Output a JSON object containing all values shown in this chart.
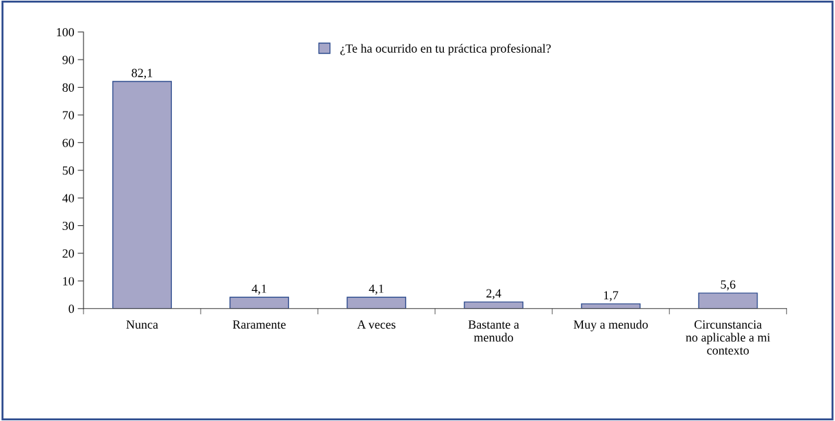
{
  "chart_data": {
    "type": "bar",
    "categories": [
      "Nunca",
      "Raramente",
      "A veces",
      "Bastante a\nmenudo",
      "Muy a menudo",
      "Circunstancia\nno aplicable a mi\ncontexto"
    ],
    "series": [
      {
        "name": "¿Te ha ocurrido en tu práctica profesional?",
        "color": "#a6a6c8",
        "values": [
          82.1,
          4.1,
          4.1,
          2.4,
          1.7,
          5.6
        ],
        "value_labels": [
          "82,1",
          "4,1",
          "4,1",
          "2,4",
          "1,7",
          "5,6"
        ]
      }
    ],
    "ylim": [
      0,
      100
    ],
    "yticks": [
      0,
      10,
      20,
      30,
      40,
      50,
      60,
      70,
      80,
      90,
      100
    ],
    "grid": false,
    "legend": "top"
  }
}
